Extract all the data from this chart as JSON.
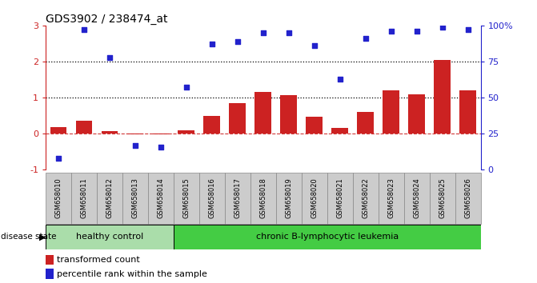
{
  "title": "GDS3902 / 238474_at",
  "samples": [
    "GSM658010",
    "GSM658011",
    "GSM658012",
    "GSM658013",
    "GSM658014",
    "GSM658015",
    "GSM658016",
    "GSM658017",
    "GSM658018",
    "GSM658019",
    "GSM658020",
    "GSM658021",
    "GSM658022",
    "GSM658023",
    "GSM658024",
    "GSM658025",
    "GSM658026"
  ],
  "bar_values": [
    0.18,
    0.35,
    0.08,
    -0.02,
    -0.02,
    0.1,
    0.5,
    0.85,
    1.15,
    1.08,
    0.48,
    0.15,
    0.6,
    1.2,
    1.1,
    2.05,
    1.2
  ],
  "dot_values_pct": [
    8,
    97,
    78,
    17,
    16,
    57,
    87,
    89,
    95,
    95,
    86,
    63,
    91,
    96,
    96,
    99,
    97
  ],
  "bar_color": "#cc2222",
  "dot_color": "#2222cc",
  "healthy_color": "#aaddaa",
  "leukemia_color": "#44cc44",
  "healthy_label": "healthy control",
  "leukemia_label": "chronic B-lymphocytic leukemia",
  "healthy_count": 5,
  "ylim_left": [
    -1,
    3
  ],
  "yticks_left": [
    -1,
    0,
    1,
    2,
    3
  ],
  "yticks_right_pct": [
    0,
    25,
    50,
    75,
    100
  ],
  "legend_bar_label": "transformed count",
  "legend_dot_label": "percentile rank within the sample",
  "disease_state_label": "disease state",
  "sample_box_color": "#cccccc",
  "sample_box_edge": "#888888"
}
